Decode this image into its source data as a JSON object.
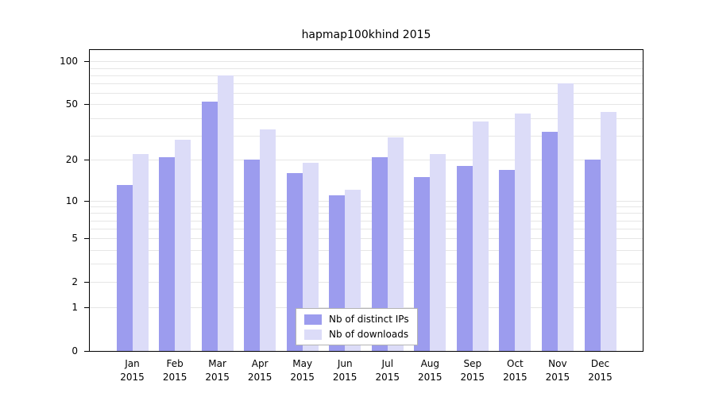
{
  "chart_data": {
    "type": "bar",
    "title": "hapmap100khind 2015",
    "categories": [
      "Jan 2015",
      "Feb 2015",
      "Mar 2015",
      "Apr 2015",
      "May 2015",
      "Jun 2015",
      "Jul 2015",
      "Aug 2015",
      "Sep 2015",
      "Oct 2015",
      "Nov 2015",
      "Dec 2015"
    ],
    "x_tick_months": [
      "Jan",
      "Feb",
      "Mar",
      "Apr",
      "May",
      "Jun",
      "Jul",
      "Aug",
      "Sep",
      "Oct",
      "Nov",
      "Dec"
    ],
    "x_tick_year": "2015",
    "series": [
      {
        "name": "Nb of distinct IPs",
        "color": "#9c9cee",
        "values": [
          13,
          21,
          52,
          20,
          16,
          11,
          21,
          15,
          18,
          17,
          32,
          20
        ]
      },
      {
        "name": "Nb of downloads",
        "color": "#dcdcf8",
        "values": [
          22,
          28,
          80,
          33,
          19,
          12,
          29,
          22,
          38,
          43,
          70,
          44
        ]
      }
    ],
    "yscale": "log10(1+y)",
    "ylim": [
      0,
      120
    ],
    "yticks": [
      100,
      50,
      20,
      10,
      5,
      2,
      1,
      0
    ],
    "gridline_values": [
      1,
      2,
      3,
      4,
      5,
      6,
      7,
      8,
      9,
      10,
      20,
      30,
      40,
      50,
      60,
      70,
      80,
      90,
      100
    ],
    "legend_position": "bottom-center",
    "grid": true,
    "colors": {
      "axis": "#000000",
      "gridline": "#e6e6e6",
      "background": "#ffffff",
      "text": "#000000",
      "legend_border": "#b3b3b3"
    }
  }
}
